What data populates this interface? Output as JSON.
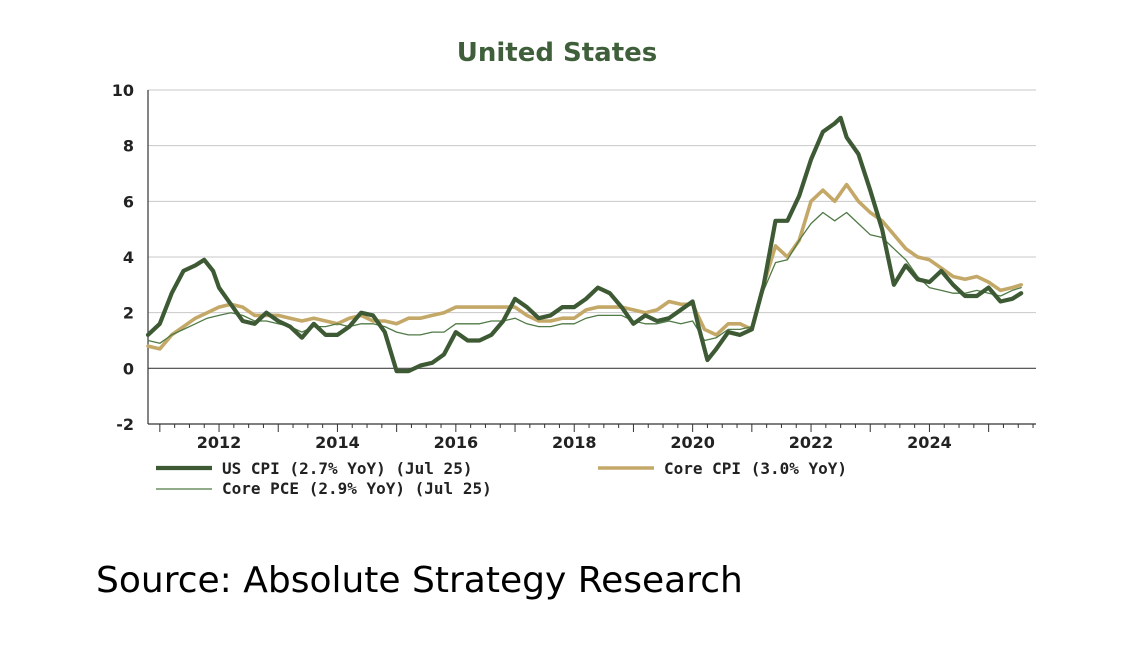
{
  "source_text": "Source: Absolute Strategy Research",
  "chart_data": {
    "type": "line",
    "title": "United States",
    "xlabel": "",
    "ylabel": "",
    "xlim": [
      2010.8,
      2025.8
    ],
    "ylim": [
      -2,
      10
    ],
    "yticks": [
      -2,
      0,
      2,
      4,
      6,
      8,
      10
    ],
    "xticks": [
      2012,
      2014,
      2016,
      2018,
      2020,
      2022,
      2024
    ],
    "grid": true,
    "legend_position": "bottom",
    "colors": {
      "us_cpi": "#3d5a35",
      "core_cpi": "#c4a868",
      "core_pce": "#4f7a45",
      "grid": "#c8c8c8",
      "axis": "#333333"
    },
    "series": [
      {
        "key": "us_cpi",
        "name": "US CPI (2.7% YoY) (Jul 25)",
        "x": [
          2010.8,
          2011.0,
          2011.2,
          2011.4,
          2011.6,
          2011.75,
          2011.9,
          2012.0,
          2012.2,
          2012.4,
          2012.6,
          2012.8,
          2013.0,
          2013.2,
          2013.4,
          2013.6,
          2013.8,
          2014.0,
          2014.2,
          2014.4,
          2014.6,
          2014.8,
          2015.0,
          2015.2,
          2015.4,
          2015.6,
          2015.8,
          2016.0,
          2016.2,
          2016.4,
          2016.6,
          2016.8,
          2017.0,
          2017.2,
          2017.4,
          2017.6,
          2017.8,
          2018.0,
          2018.2,
          2018.4,
          2018.6,
          2018.8,
          2019.0,
          2019.2,
          2019.4,
          2019.6,
          2019.8,
          2020.0,
          2020.1,
          2020.25,
          2020.4,
          2020.6,
          2020.8,
          2021.0,
          2021.2,
          2021.4,
          2021.6,
          2021.8,
          2022.0,
          2022.2,
          2022.4,
          2022.5,
          2022.6,
          2022.8,
          2023.0,
          2023.2,
          2023.4,
          2023.6,
          2023.8,
          2024.0,
          2024.2,
          2024.4,
          2024.6,
          2024.8,
          2025.0,
          2025.2,
          2025.4,
          2025.55
        ],
        "values": [
          1.2,
          1.6,
          2.7,
          3.5,
          3.7,
          3.9,
          3.5,
          2.9,
          2.3,
          1.7,
          1.6,
          2.0,
          1.7,
          1.5,
          1.1,
          1.6,
          1.2,
          1.2,
          1.5,
          2.0,
          1.9,
          1.3,
          -0.1,
          -0.1,
          0.1,
          0.2,
          0.5,
          1.3,
          1.0,
          1.0,
          1.2,
          1.7,
          2.5,
          2.2,
          1.8,
          1.9,
          2.2,
          2.2,
          2.5,
          2.9,
          2.7,
          2.2,
          1.6,
          1.9,
          1.7,
          1.8,
          2.1,
          2.4,
          1.5,
          0.3,
          0.7,
          1.3,
          1.2,
          1.4,
          3.0,
          5.3,
          5.3,
          6.2,
          7.5,
          8.5,
          8.8,
          9.0,
          8.3,
          7.7,
          6.4,
          5.0,
          3.0,
          3.7,
          3.2,
          3.1,
          3.5,
          3.0,
          2.6,
          2.6,
          2.9,
          2.4,
          2.5,
          2.7
        ]
      },
      {
        "key": "core_cpi",
        "name": "Core CPI (3.0% YoY)",
        "x": [
          2010.8,
          2011.0,
          2011.2,
          2011.4,
          2011.6,
          2011.8,
          2012.0,
          2012.2,
          2012.4,
          2012.6,
          2012.8,
          2013.0,
          2013.2,
          2013.4,
          2013.6,
          2013.8,
          2014.0,
          2014.2,
          2014.4,
          2014.6,
          2014.8,
          2015.0,
          2015.2,
          2015.4,
          2015.6,
          2015.8,
          2016.0,
          2016.2,
          2016.4,
          2016.6,
          2016.8,
          2017.0,
          2017.2,
          2017.4,
          2017.6,
          2017.8,
          2018.0,
          2018.2,
          2018.4,
          2018.6,
          2018.8,
          2019.0,
          2019.2,
          2019.4,
          2019.6,
          2019.8,
          2020.0,
          2020.2,
          2020.4,
          2020.6,
          2020.8,
          2021.0,
          2021.2,
          2021.4,
          2021.6,
          2021.8,
          2022.0,
          2022.2,
          2022.4,
          2022.6,
          2022.8,
          2023.0,
          2023.2,
          2023.4,
          2023.6,
          2023.8,
          2024.0,
          2024.2,
          2024.4,
          2024.6,
          2024.8,
          2025.0,
          2025.2,
          2025.4,
          2025.55
        ],
        "values": [
          0.8,
          0.7,
          1.2,
          1.5,
          1.8,
          2.0,
          2.2,
          2.3,
          2.2,
          1.9,
          1.9,
          1.9,
          1.8,
          1.7,
          1.8,
          1.7,
          1.6,
          1.8,
          1.9,
          1.7,
          1.7,
          1.6,
          1.8,
          1.8,
          1.9,
          2.0,
          2.2,
          2.2,
          2.2,
          2.2,
          2.2,
          2.2,
          1.9,
          1.7,
          1.7,
          1.8,
          1.8,
          2.1,
          2.2,
          2.2,
          2.2,
          2.1,
          2.0,
          2.1,
          2.4,
          2.3,
          2.3,
          1.4,
          1.2,
          1.6,
          1.6,
          1.4,
          3.0,
          4.4,
          4.0,
          4.6,
          6.0,
          6.4,
          6.0,
          6.6,
          6.0,
          5.6,
          5.3,
          4.8,
          4.3,
          4.0,
          3.9,
          3.6,
          3.3,
          3.2,
          3.3,
          3.1,
          2.8,
          2.9,
          3.0
        ]
      },
      {
        "key": "core_pce",
        "name": "Core PCE (2.9% YoY) (Jul 25)",
        "x": [
          2010.8,
          2011.0,
          2011.2,
          2011.4,
          2011.6,
          2011.8,
          2012.0,
          2012.2,
          2012.4,
          2012.6,
          2012.8,
          2013.0,
          2013.2,
          2013.4,
          2013.6,
          2013.8,
          2014.0,
          2014.2,
          2014.4,
          2014.6,
          2014.8,
          2015.0,
          2015.2,
          2015.4,
          2015.6,
          2015.8,
          2016.0,
          2016.2,
          2016.4,
          2016.6,
          2016.8,
          2017.0,
          2017.2,
          2017.4,
          2017.6,
          2017.8,
          2018.0,
          2018.2,
          2018.4,
          2018.6,
          2018.8,
          2019.0,
          2019.2,
          2019.4,
          2019.6,
          2019.8,
          2020.0,
          2020.2,
          2020.4,
          2020.6,
          2020.8,
          2021.0,
          2021.2,
          2021.4,
          2021.6,
          2021.8,
          2022.0,
          2022.2,
          2022.4,
          2022.6,
          2022.8,
          2023.0,
          2023.2,
          2023.4,
          2023.6,
          2023.8,
          2024.0,
          2024.2,
          2024.4,
          2024.6,
          2024.8,
          2025.0,
          2025.2,
          2025.4,
          2025.55
        ],
        "values": [
          1.0,
          0.9,
          1.2,
          1.4,
          1.6,
          1.8,
          1.9,
          2.0,
          1.9,
          1.7,
          1.7,
          1.6,
          1.5,
          1.3,
          1.5,
          1.5,
          1.6,
          1.5,
          1.6,
          1.6,
          1.5,
          1.3,
          1.2,
          1.2,
          1.3,
          1.3,
          1.6,
          1.6,
          1.6,
          1.7,
          1.7,
          1.8,
          1.6,
          1.5,
          1.5,
          1.6,
          1.6,
          1.8,
          1.9,
          1.9,
          1.9,
          1.7,
          1.6,
          1.6,
          1.7,
          1.6,
          1.7,
          1.0,
          1.1,
          1.4,
          1.4,
          1.5,
          2.8,
          3.8,
          3.9,
          4.6,
          5.2,
          5.6,
          5.3,
          5.6,
          5.2,
          4.8,
          4.7,
          4.3,
          3.9,
          3.3,
          2.9,
          2.8,
          2.7,
          2.7,
          2.8,
          2.7,
          2.6,
          2.8,
          2.9
        ]
      }
    ]
  }
}
